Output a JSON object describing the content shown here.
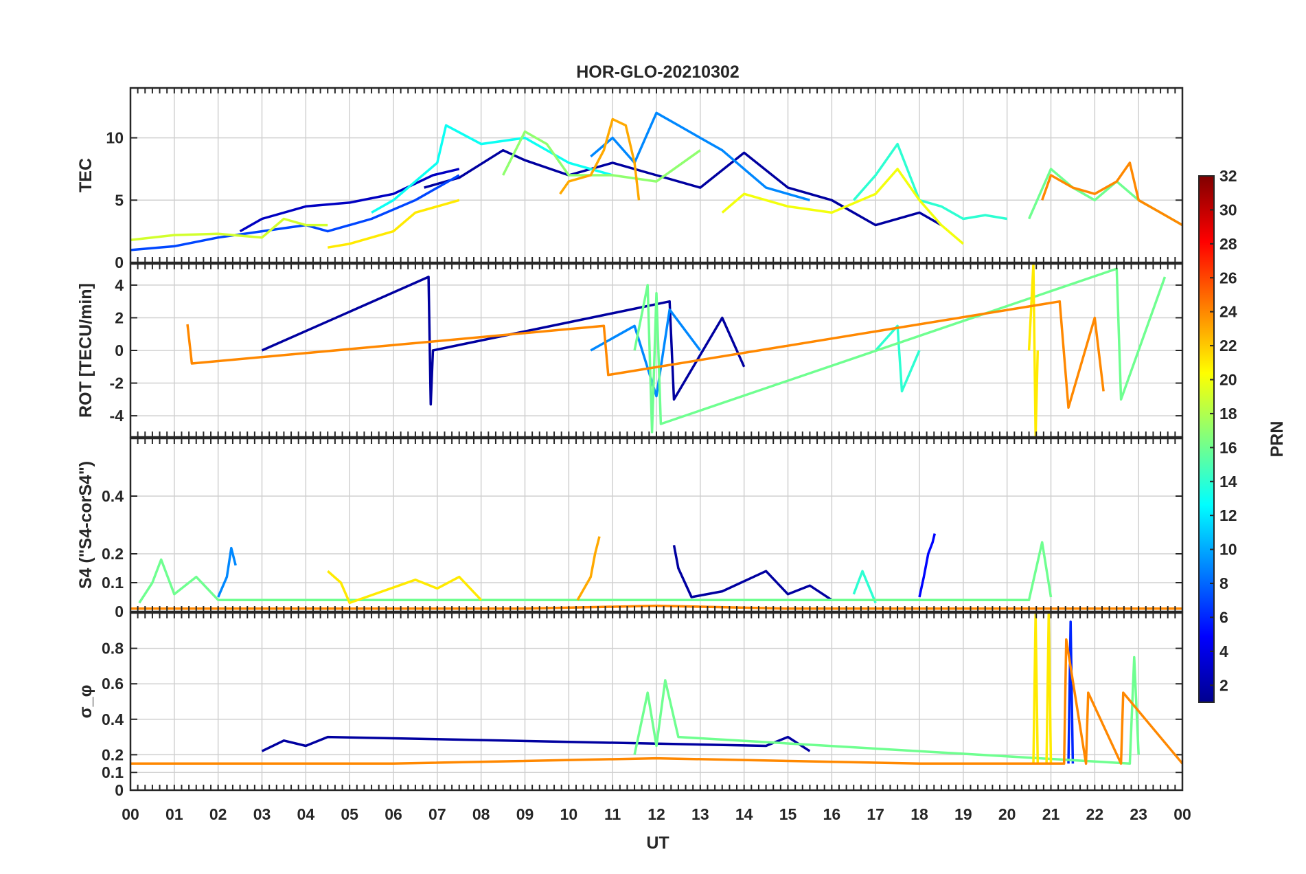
{
  "chart_data": {
    "type": "line",
    "title": "HOR-GLO-20210302",
    "xlabel": "UT",
    "x_tick_labels": [
      "00",
      "01",
      "02",
      "03",
      "04",
      "05",
      "06",
      "07",
      "08",
      "09",
      "10",
      "11",
      "12",
      "13",
      "14",
      "15",
      "16",
      "17",
      "18",
      "19",
      "20",
      "21",
      "22",
      "23",
      "00"
    ],
    "xlim": [
      0,
      24
    ],
    "colorbar": {
      "label": "PRN",
      "range": [
        1,
        32
      ],
      "tick_labels": [
        "2",
        "4",
        "6",
        "8",
        "10",
        "12",
        "14",
        "16",
        "18",
        "20",
        "22",
        "24",
        "26",
        "28",
        "30",
        "32"
      ]
    },
    "panels": [
      {
        "id": "tec",
        "ylabel": "TEC",
        "ylim": [
          0,
          14
        ],
        "y_ticks": [
          0,
          5,
          10
        ],
        "y_tick_labels": [
          "0",
          "5",
          "10"
        ],
        "series": [
          {
            "prn": 2,
            "x": [
              6.7,
              7.5,
              8.5,
              9.0,
              10.0,
              11.0,
              12.0,
              13.0,
              14.0,
              15.0,
              16.0,
              17.0,
              18.0,
              18.5
            ],
            "y": [
              6.0,
              6.8,
              9.0,
              8.2,
              7.0,
              8.0,
              7.0,
              6.0,
              8.8,
              6.0,
              5.0,
              3.0,
              4.0,
              3.0
            ]
          },
          {
            "prn": 3,
            "x": [
              2.5,
              3.0,
              4.0,
              5.0,
              6.0,
              6.9,
              7.5
            ],
            "y": [
              2.5,
              3.5,
              4.5,
              4.8,
              5.5,
              7.0,
              7.5
            ]
          },
          {
            "prn": 7,
            "x": [
              0.0,
              1.0,
              2.0,
              3.0,
              4.0,
              4.5,
              5.5,
              6.5,
              7.5
            ],
            "y": [
              1.0,
              1.3,
              2.0,
              2.5,
              3.0,
              2.5,
              3.5,
              5.0,
              7.0
            ]
          },
          {
            "prn": 9,
            "x": [
              10.5,
              11.0,
              11.5,
              12.0,
              12.5,
              13.0,
              13.5,
              14.0,
              14.5,
              15.5
            ],
            "y": [
              8.5,
              10.0,
              8.0,
              12.0,
              11.0,
              10.0,
              9.0,
              7.5,
              6.0,
              5.0
            ]
          },
          {
            "prn": 13,
            "x": [
              5.5,
              6.0,
              6.5,
              7.0,
              7.2,
              8.0,
              9.0,
              10.0,
              11.0
            ],
            "y": [
              4.0,
              5.0,
              6.5,
              8.0,
              11.0,
              9.5,
              10.0,
              8.0,
              7.0
            ]
          },
          {
            "prn": 14,
            "x": [
              16.5,
              17.0,
              17.5,
              18.0,
              18.5,
              19.0,
              19.5,
              20.0
            ],
            "y": [
              5.0,
              7.0,
              9.5,
              5.0,
              4.5,
              3.5,
              3.8,
              3.5
            ]
          },
          {
            "prn": 16,
            "x": [
              20.5,
              21.0,
              21.5,
              22.0,
              22.5,
              23.0,
              23.5,
              24.0
            ],
            "y": [
              3.5,
              7.5,
              6.0,
              5.0,
              6.5,
              5.0,
              4.0,
              3.0
            ]
          },
          {
            "prn": 17,
            "x": [
              8.5,
              9.0,
              9.5,
              10.0,
              11.0,
              12.0,
              13.0
            ],
            "y": [
              7.0,
              10.5,
              9.5,
              7.0,
              7.0,
              6.5,
              9.0
            ]
          },
          {
            "prn": 19,
            "x": [
              0.0,
              1.0,
              2.0,
              3.0,
              3.5,
              4.0,
              4.5
            ],
            "y": [
              1.8,
              2.2,
              2.3,
              2.0,
              3.5,
              3.0,
              3.0
            ]
          },
          {
            "prn": 20,
            "x": [
              13.5,
              14.0,
              15.0,
              16.0,
              17.0,
              17.5,
              18.0,
              18.5,
              19.0
            ],
            "y": [
              4.0,
              5.5,
              4.5,
              4.0,
              5.5,
              7.5,
              5.0,
              3.0,
              1.5
            ]
          },
          {
            "prn": 21,
            "x": [
              4.5,
              5.0,
              5.5,
              6.0,
              6.5,
              7.0,
              7.5
            ],
            "y": [
              1.2,
              1.5,
              2.0,
              2.5,
              4.0,
              4.5,
              5.0
            ]
          },
          {
            "prn": 23,
            "x": [
              9.8,
              10.0,
              10.5,
              10.8,
              11.0,
              11.3,
              11.5,
              11.6
            ],
            "y": [
              5.5,
              6.5,
              7.0,
              9.0,
              11.5,
              11.0,
              8.0,
              5.0
            ]
          },
          {
            "prn": 24,
            "x": [
              20.8,
              21.0,
              21.5,
              22.0,
              22.5,
              22.8,
              23.0,
              23.5,
              24.0
            ],
            "y": [
              5.0,
              7.0,
              6.0,
              5.5,
              6.5,
              8.0,
              5.0,
              4.0,
              3.0
            ]
          }
        ]
      },
      {
        "id": "rot",
        "ylabel": "ROT [TECU/min]",
        "ylim": [
          -5.3,
          5.3
        ],
        "y_ticks": [
          -4,
          -2,
          0,
          2,
          4
        ],
        "y_tick_labels": [
          "-4",
          "-2",
          "0",
          "2",
          "4"
        ],
        "series": [
          {
            "prn": 2,
            "x": [
              3.0,
              6.8,
              6.85,
              6.9,
              12.3,
              12.4,
              13.5,
              14.0
            ],
            "y": [
              0.0,
              4.5,
              -3.3,
              0.0,
              3.0,
              -3.0,
              2.0,
              -1.0
            ]
          },
          {
            "prn": 9,
            "x": [
              10.5,
              11.5,
              12.0,
              12.3,
              13.0
            ],
            "y": [
              0.0,
              1.5,
              -2.8,
              2.5,
              0.0
            ]
          },
          {
            "prn": 14,
            "x": [
              17.0,
              17.5,
              17.6,
              18.0
            ],
            "y": [
              0.0,
              1.5,
              -2.5,
              0.0
            ]
          },
          {
            "prn": 16,
            "x": [
              11.5,
              11.8,
              11.9,
              12.0,
              12.1,
              22.5,
              22.6,
              23.6
            ],
            "y": [
              0.0,
              4.0,
              -5.0,
              3.5,
              -4.5,
              5.0,
              -3.0,
              4.5
            ]
          },
          {
            "prn": 21,
            "x": [
              20.5,
              20.6,
              20.65,
              20.7
            ],
            "y": [
              0.0,
              5.3,
              -5.3,
              0.0
            ]
          },
          {
            "prn": 24,
            "x": [
              1.3,
              1.4,
              10.8,
              10.9,
              21.2,
              21.4,
              22.0,
              22.2
            ],
            "y": [
              1.6,
              -0.8,
              1.5,
              -1.5,
              3.0,
              -3.5,
              2.0,
              -2.5
            ]
          }
        ]
      },
      {
        "id": "s4",
        "ylabel": "S4 (\"S4-corS4\")",
        "ylim": [
          0,
          0.6
        ],
        "y_ticks": [
          0,
          0.1,
          0.2,
          0.4
        ],
        "y_tick_labels": [
          "0",
          "0.1",
          "0.2",
          "0.4"
        ],
        "series": [
          {
            "prn": 2,
            "x": [
              12.4,
              12.5,
              12.8,
              13.5,
              14.5,
              15.0,
              15.5,
              16.0
            ],
            "y": [
              0.23,
              0.15,
              0.05,
              0.07,
              0.14,
              0.06,
              0.09,
              0.04
            ]
          },
          {
            "prn": 5,
            "x": [
              18.0,
              18.1,
              18.2,
              18.3,
              18.35
            ],
            "y": [
              0.05,
              0.12,
              0.2,
              0.24,
              0.27
            ]
          },
          {
            "prn": 9,
            "x": [
              2.0,
              2.2,
              2.3,
              2.4
            ],
            "y": [
              0.05,
              0.12,
              0.22,
              0.16
            ]
          },
          {
            "prn": 14,
            "x": [
              16.5,
              16.7,
              17.0
            ],
            "y": [
              0.06,
              0.14,
              0.03
            ]
          },
          {
            "prn": 16,
            "x": [
              0.2,
              0.5,
              0.7,
              1.0,
              1.5,
              2.0,
              20.5,
              20.8,
              21.0
            ],
            "y": [
              0.03,
              0.1,
              0.18,
              0.06,
              0.12,
              0.04,
              0.04,
              0.24,
              0.05
            ]
          },
          {
            "prn": 21,
            "x": [
              4.5,
              4.8,
              5.0,
              6.5,
              7.0,
              7.5,
              8.0
            ],
            "y": [
              0.14,
              0.1,
              0.03,
              0.11,
              0.08,
              0.12,
              0.04
            ]
          },
          {
            "prn": 23,
            "x": [
              10.2,
              10.5,
              10.6,
              10.7
            ],
            "y": [
              0.04,
              0.12,
              0.2,
              0.26
            ]
          },
          {
            "prn": 24,
            "x": [
              0.0,
              3.0,
              6.0,
              9.0,
              12.0,
              15.0,
              18.0,
              21.0,
              24.0
            ],
            "y": [
              0.01,
              0.01,
              0.01,
              0.01,
              0.02,
              0.01,
              0.01,
              0.01,
              0.01
            ]
          }
        ]
      },
      {
        "id": "sigma_phi",
        "ylabel": "σ_φ",
        "ylim": [
          0,
          1.0
        ],
        "y_ticks": [
          0,
          0.1,
          0.2,
          0.4,
          0.6,
          0.8
        ],
        "y_tick_labels": [
          "0",
          "0.1",
          "0.2",
          "0.4",
          "0.6",
          "0.8"
        ],
        "series": [
          {
            "prn": 2,
            "x": [
              3.0,
              3.5,
              4.0,
              4.5,
              14.5,
              15.0,
              15.5
            ],
            "y": [
              0.22,
              0.28,
              0.25,
              0.3,
              0.25,
              0.3,
              0.22
            ]
          },
          {
            "prn": 6,
            "x": [
              21.4,
              21.45,
              21.5
            ],
            "y": [
              0.15,
              0.95,
              0.15
            ]
          },
          {
            "prn": 16,
            "x": [
              11.5,
              11.8,
              12.0,
              12.2,
              12.5,
              22.8,
              22.9,
              23.0
            ],
            "y": [
              0.2,
              0.55,
              0.25,
              0.62,
              0.3,
              0.15,
              0.75,
              0.2
            ]
          },
          {
            "prn": 21,
            "x": [
              20.6,
              20.65,
              20.7,
              20.9,
              20.95,
              21.0
            ],
            "y": [
              0.15,
              1.0,
              0.15,
              0.15,
              1.0,
              0.15
            ]
          },
          {
            "prn": 24,
            "x": [
              0.0,
              6.0,
              12.0,
              18.0,
              21.3,
              21.35,
              21.8,
              21.85,
              22.6,
              22.65,
              24.0
            ],
            "y": [
              0.15,
              0.15,
              0.18,
              0.15,
              0.15,
              0.85,
              0.15,
              0.55,
              0.15,
              0.55,
              0.15
            ]
          }
        ]
      }
    ]
  }
}
